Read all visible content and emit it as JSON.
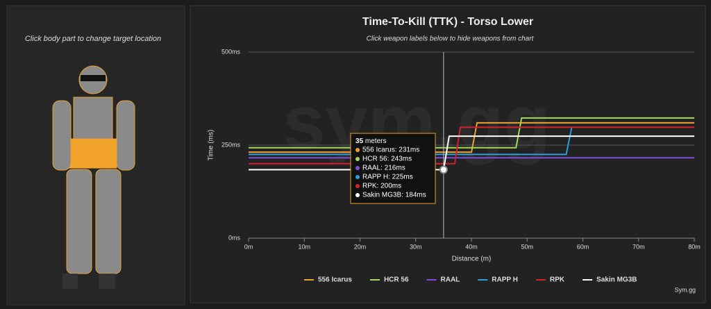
{
  "left_panel": {
    "hint": "Click body part to change target location"
  },
  "footer": "Sym.gg",
  "watermark": "sym.gg",
  "chart_data": {
    "type": "line",
    "title": "Time-To-Kill (TTK) - Torso Lower",
    "subtitle": "Click weapon labels below to hide weapons from chart",
    "x_label": "Distance (m)",
    "y_label": "Time (ms)",
    "xlim": [
      0,
      80
    ],
    "ylim": [
      0,
      500
    ],
    "xticks": [
      {
        "value": 0,
        "label": "0m"
      },
      {
        "value": 10,
        "label": "10m"
      },
      {
        "value": 20,
        "label": "20m"
      },
      {
        "value": 30,
        "label": "30m"
      },
      {
        "value": 40,
        "label": "40m"
      },
      {
        "value": 50,
        "label": "50m"
      },
      {
        "value": 60,
        "label": "60m"
      },
      {
        "value": 70,
        "label": "70m"
      },
      {
        "value": 80,
        "label": "80m"
      }
    ],
    "yticks": [
      {
        "value": 0,
        "label": "0ms"
      },
      {
        "value": 250,
        "label": "250ms"
      },
      {
        "value": 500,
        "label": "500ms"
      }
    ],
    "grid": true,
    "series": [
      {
        "name": "556 Icarus",
        "color": "#f0a030",
        "x": [
          0,
          40,
          41,
          80
        ],
        "values": [
          231,
          231,
          310,
          310
        ]
      },
      {
        "name": "HCR 56",
        "color": "#a6d95a",
        "x": [
          0,
          48,
          49,
          80
        ],
        "values": [
          243,
          243,
          323,
          323
        ]
      },
      {
        "name": "RAAL",
        "color": "#7c4fd8",
        "x": [
          0,
          80
        ],
        "values": [
          216,
          216
        ]
      },
      {
        "name": "RAPP H",
        "color": "#2a9fe0",
        "x": [
          0,
          57,
          58
        ],
        "values": [
          225,
          225,
          298
        ]
      },
      {
        "name": "RPK",
        "color": "#d2202c",
        "x": [
          0,
          37,
          38,
          80
        ],
        "values": [
          200,
          200,
          298,
          298
        ]
      },
      {
        "name": "Sakin MG3B",
        "color": "#ffffff",
        "x": [
          0,
          35,
          36,
          80
        ],
        "values": [
          184,
          184,
          274,
          274
        ]
      }
    ],
    "tooltip": {
      "distance": "35",
      "unit": "meters",
      "items": [
        "556 Icarus: 231ms",
        "HCR 56: 243ms",
        "RAAL: 216ms",
        "RAPP H: 225ms",
        "RPK: 200ms",
        "Sakin MG3B: 184ms"
      ]
    }
  }
}
